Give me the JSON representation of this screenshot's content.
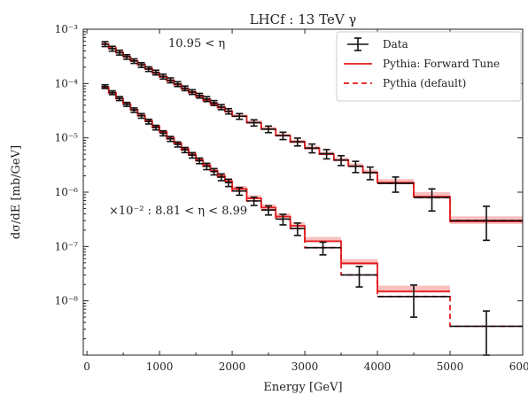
{
  "chart_data": {
    "type": "step",
    "title": "LHCf : 13 TeV γ",
    "xlabel": "Energy [GeV]",
    "ylabel": "dσ/dE [mb/GeV]",
    "xlim": [
      -50,
      6000
    ],
    "ylim": [
      1e-09,
      0.001
    ],
    "yscale": "log",
    "x_ticks": [
      0,
      1000,
      2000,
      3000,
      4000,
      5000,
      6000
    ],
    "y_ticks": [
      {
        "value": 0.001,
        "label": "10⁻³"
      },
      {
        "value": 0.0001,
        "label": "10⁻⁴"
      },
      {
        "value": 1e-05,
        "label": "10⁻⁵"
      },
      {
        "value": 1e-06,
        "label": "10⁻⁶"
      },
      {
        "value": 1e-07,
        "label": "10⁻⁷"
      },
      {
        "value": 1e-08,
        "label": "10⁻⁸"
      }
    ],
    "legend_position": "top-right",
    "legend": [
      {
        "name": "Data",
        "style": "errorbar"
      },
      {
        "name": "Pythia: Forward Tune",
        "style": "solid"
      },
      {
        "name": "Pythia (default)",
        "style": "dashed"
      }
    ],
    "annotations": [
      "10.95 < η",
      "×10⁻² : 8.81 < η < 8.99"
    ],
    "colors": {
      "data": "#111111",
      "model": "#e31a1c",
      "band": "#f9b9b9"
    },
    "regions": [
      {
        "label": "10.95 < η",
        "bins": [
          [
            200,
            300,
            0.00052,
            0.00056,
            0.00053,
            0.0004,
            0.00066,
            0.00054
          ],
          [
            300,
            400,
            0.00043,
            0.00047,
            0.00044,
            0.00033,
            0.00055,
            0.000455
          ],
          [
            400,
            500,
            0.00036,
            0.000395,
            0.00037,
            0.000275,
            0.00046,
            0.000375
          ],
          [
            500,
            600,
            0.0003,
            0.00033,
            0.00031,
            0.00023,
            0.00039,
            0.000315
          ],
          [
            600,
            700,
            0.000255,
            0.00028,
            0.00026,
            0.000195,
            0.00033,
            0.000265
          ],
          [
            700,
            800,
            0.000215,
            0.000235,
            0.00022,
            0.00016,
            0.00028,
            0.000225
          ],
          [
            800,
            900,
            0.00018,
            0.0002,
            0.000185,
            0.000135,
            0.000235,
            0.00019
          ],
          [
            900,
            1000,
            0.000155,
            0.00017,
            0.000155,
            0.000115,
            0.0002,
            0.00016
          ],
          [
            1000,
            1100,
            0.00013,
            0.000145,
            0.000132,
            9.6e-05,
            0.00017,
            0.000135
          ],
          [
            1100,
            1200,
            0.00011,
            0.000122,
            0.000112,
            8.1e-05,
            0.000145,
            0.000115
          ],
          [
            1200,
            1300,
            9.3e-05,
            0.000103,
            9.5e-05,
            6.9e-05,
            0.000122,
            9.8e-05
          ],
          [
            1300,
            1400,
            7.9e-05,
            8.8e-05,
            8e-05,
            5.8e-05,
            0.000104,
            8.2e-05
          ],
          [
            1400,
            1500,
            6.7e-05,
            7.5e-05,
            6.8e-05,
            4.9e-05,
            8.8e-05,
            7e-05
          ],
          [
            1500,
            1600,
            5.7e-05,
            6.4e-05,
            5.8e-05,
            4.2e-05,
            7.5e-05,
            6e-05
          ],
          [
            1600,
            1700,
            4.8e-05,
            5.4e-05,
            4.9e-05,
            3.55e-05,
            6.4e-05,
            5.2e-05
          ],
          [
            1700,
            1800,
            4.1e-05,
            4.6e-05,
            4.2e-05,
            3e-05,
            5.5e-05,
            4.4e-05
          ],
          [
            1800,
            1900,
            3.5e-05,
            3.95e-05,
            3.6e-05,
            2.55e-05,
            4.7e-05,
            3.7e-05
          ],
          [
            1900,
            2000,
            3e-05,
            3.35e-05,
            3.05e-05,
            2.15e-05,
            4e-05,
            3.1e-05
          ],
          [
            2000,
            2200,
            2.45e-05,
            2.75e-05,
            2.5e-05,
            1.75e-05,
            3.3e-05,
            2.5e-05
          ],
          [
            2200,
            2400,
            1.85e-05,
            2.1e-05,
            1.9e-05,
            1.3e-05,
            2.5e-05,
            1.9e-05
          ],
          [
            2400,
            2600,
            1.4e-05,
            1.6e-05,
            1.45e-05,
            9.8e-06,
            1.95e-05,
            1.45e-05
          ],
          [
            2600,
            2800,
            1.05e-05,
            1.2e-05,
            1.1e-05,
            7.3e-06,
            1.5e-05,
            1.1e-05
          ],
          [
            2800,
            3000,
            8.1e-06,
            9.3e-06,
            8.4e-06,
            5.5e-06,
            1.15e-05,
            8.5e-06
          ],
          [
            3000,
            3200,
            6.2e-06,
            7.2e-06,
            6.4e-06,
            4.2e-06,
            8.9e-06,
            6.5e-06
          ],
          [
            3200,
            3400,
            4.8e-06,
            5.6e-06,
            5e-06,
            3.2e-06,
            7e-06,
            5.1e-06
          ],
          [
            3400,
            3600,
            3.7e-06,
            4.35e-06,
            3.9e-06,
            2.45e-06,
            5.5e-06,
            3.9e-06
          ],
          [
            3600,
            3800,
            2.9e-06,
            3.4e-06,
            3e-06,
            1.85e-06,
            4.3e-06,
            3e-06
          ],
          [
            3800,
            4000,
            2.2e-06,
            2.6e-06,
            2.3e-06,
            1.4e-06,
            3.4e-06,
            2.3e-06
          ],
          [
            4000,
            4500,
            1.45e-06,
            1.75e-06,
            1.5e-06,
            8.5e-07,
            2.4e-06,
            1.45e-06
          ],
          [
            4500,
            5000,
            8e-07,
            1e-06,
            8.3e-07,
            4.3e-07,
            1.6e-06,
            8e-07
          ],
          [
            5000,
            6000,
            2.6e-07,
            3.6e-07,
            2.9e-07,
            1.2e-07,
            7.5e-07,
            3e-07
          ]
        ]
      },
      {
        "label": "×10⁻² : 8.81 < η < 8.99",
        "bins": [
          [
            200,
            300,
            8.4e-05,
            9e-05,
            8.5e-05,
            7e-05,
            0.0001,
            8.8e-05
          ],
          [
            300,
            400,
            6.6e-05,
            7.1e-05,
            6.7e-05,
            5.5e-05,
            7.9e-05,
            6.8e-05
          ],
          [
            400,
            500,
            5.2e-05,
            5.6e-05,
            5.3e-05,
            4.3e-05,
            6.25e-05,
            5.3e-05
          ],
          [
            500,
            600,
            4.1e-05,
            4.45e-05,
            4.2e-05,
            3.4e-05,
            4.95e-05,
            4.15e-05
          ],
          [
            600,
            700,
            3.25e-05,
            3.55e-05,
            3.3e-05,
            2.65e-05,
            3.95e-05,
            3.25e-05
          ],
          [
            700,
            800,
            2.55e-05,
            2.8e-05,
            2.6e-05,
            2.1e-05,
            3.1e-05,
            2.55e-05
          ],
          [
            800,
            900,
            2e-05,
            2.2e-05,
            2.05e-05,
            1.65e-05,
            2.45e-05,
            2e-05
          ],
          [
            900,
            1000,
            1.6e-05,
            1.75e-05,
            1.62e-05,
            1.3e-05,
            1.95e-05,
            1.55e-05
          ],
          [
            1000,
            1100,
            1.25e-05,
            1.38e-05,
            1.28e-05,
            1.02e-05,
            1.54e-05,
            1.22e-05
          ],
          [
            1100,
            1200,
            9.9e-06,
            1.09e-05,
            1e-05,
            8e-06,
            1.22e-05,
            9.6e-06
          ],
          [
            1200,
            1300,
            7.8e-06,
            8.6e-06,
            7.9e-06,
            6.3e-06,
            9.6e-06,
            7.6e-06
          ],
          [
            1300,
            1400,
            6.2e-06,
            6.9e-06,
            6.3e-06,
            5e-06,
            7.7e-06,
            6e-06
          ],
          [
            1400,
            1500,
            4.9e-06,
            5.5e-06,
            5e-06,
            3.9e-06,
            6.1e-06,
            4.8e-06
          ],
          [
            1500,
            1600,
            3.9e-06,
            4.35e-06,
            3.95e-06,
            3.1e-06,
            4.85e-06,
            3.8e-06
          ],
          [
            1600,
            1700,
            3.1e-06,
            3.5e-06,
            3.15e-06,
            2.45e-06,
            3.9e-06,
            3e-06
          ],
          [
            1700,
            1800,
            2.45e-06,
            2.8e-06,
            2.5e-06,
            1.95e-06,
            3.1e-06,
            2.4e-06
          ],
          [
            1800,
            1900,
            1.95e-06,
            2.25e-06,
            2e-06,
            1.55e-06,
            2.5e-06,
            1.9e-06
          ],
          [
            1900,
            2000,
            1.55e-06,
            1.8e-06,
            1.6e-06,
            1.22e-06,
            2e-06,
            1.5e-06
          ],
          [
            2000,
            2200,
            1.1e-06,
            1.3e-06,
            1.15e-06,
            8.6e-07,
            1.45e-06,
            1.05e-06
          ],
          [
            2200,
            2400,
            7.4e-07,
            8.8e-07,
            7.7e-07,
            5.7e-07,
            9.9e-07,
            6.9e-07
          ],
          [
            2400,
            2600,
            5e-07,
            6e-07,
            5.2e-07,
            3.8e-07,
            6.8e-07,
            4.7e-07
          ],
          [
            2600,
            2800,
            3.4e-07,
            4.1e-07,
            3.55e-07,
            2.55e-07,
            4.7e-07,
            3.2e-07
          ],
          [
            2800,
            3000,
            2.3e-07,
            2.8e-07,
            2.4e-07,
            1.7e-07,
            3.2e-07,
            2.15e-07
          ],
          [
            3000,
            3500,
            1.2e-07,
            1.5e-07,
            1.25e-07,
            8.5e-08,
            1.75e-07,
            9.5e-08
          ],
          [
            3500,
            4000,
            4.6e-08,
            5.9e-08,
            4.9e-08,
            3e-08,
            7.2e-08,
            3e-08
          ],
          [
            4000,
            5000,
            1.4e-08,
            1.9e-08,
            1.5e-08,
            8e-09,
            2.6e-08,
            1.2e-08
          ],
          [
            5000,
            6000,
            null,
            null,
            null,
            null,
            null,
            3.4e-09
          ]
        ]
      }
    ],
    "data_points": [
      [
        250,
        0.00053,
        0.00059,
        0.00048,
        50
      ],
      [
        350,
        0.00044,
        0.000485,
        0.000395,
        50
      ],
      [
        450,
        0.00037,
        0.00041,
        0.000335,
        50
      ],
      [
        550,
        0.00031,
        0.00034,
        0.00028,
        50
      ],
      [
        650,
        0.00026,
        0.000285,
        0.000235,
        50
      ],
      [
        750,
        0.00022,
        0.000242,
        0.000198,
        50
      ],
      [
        850,
        0.000185,
        0.000203,
        0.000167,
        50
      ],
      [
        950,
        0.00016,
        0.000176,
        0.000144,
        50
      ],
      [
        1050,
        0.000135,
        0.000149,
        0.000121,
        50
      ],
      [
        1150,
        0.000115,
        0.000127,
        0.000103,
        50
      ],
      [
        1250,
        9.8e-05,
        0.000108,
        8.8e-05,
        50
      ],
      [
        1350,
        8.2e-05,
        9e-05,
        7.4e-05,
        50
      ],
      [
        1450,
        7e-05,
        7.7e-05,
        6.3e-05,
        50
      ],
      [
        1550,
        6e-05,
        6.6e-05,
        5.4e-05,
        50
      ],
      [
        1650,
        5.2e-05,
        5.75e-05,
        4.65e-05,
        50
      ],
      [
        1750,
        4.4e-05,
        4.85e-05,
        3.95e-05,
        50
      ],
      [
        1850,
        3.7e-05,
        4.1e-05,
        3.3e-05,
        50
      ],
      [
        1950,
        3.1e-05,
        3.45e-05,
        2.75e-05,
        50
      ],
      [
        2100,
        2.5e-05,
        2.8e-05,
        2.2e-05,
        100
      ],
      [
        2300,
        1.9e-05,
        2.15e-05,
        1.65e-05,
        100
      ],
      [
        2500,
        1.45e-05,
        1.65e-05,
        1.25e-05,
        100
      ],
      [
        2700,
        1.1e-05,
        1.27e-05,
        9.3e-06,
        100
      ],
      [
        2900,
        8.5e-06,
        9.9e-06,
        7.1e-06,
        100
      ],
      [
        3100,
        6.5e-06,
        7.7e-06,
        5.3e-06,
        100
      ],
      [
        3300,
        5.1e-06,
        6.1e-06,
        4.1e-06,
        100
      ],
      [
        3500,
        3.9e-06,
        4.7e-06,
        3.1e-06,
        100
      ],
      [
        3700,
        3e-06,
        3.7e-06,
        2.3e-06,
        100
      ],
      [
        3900,
        2.3e-06,
        2.9e-06,
        1.7e-06,
        100
      ],
      [
        4250,
        1.45e-06,
        1.9e-06,
        1e-06,
        250
      ],
      [
        4750,
        8e-07,
        1.15e-06,
        4.5e-07,
        250
      ],
      [
        5500,
        3e-07,
        5.5e-07,
        1.3e-07,
        500
      ],
      [
        250,
        8.8e-05,
        9.5e-05,
        8.1e-05,
        50
      ],
      [
        350,
        6.8e-05,
        7.35e-05,
        6.25e-05,
        50
      ],
      [
        450,
        5.3e-05,
        5.75e-05,
        4.85e-05,
        50
      ],
      [
        550,
        4.15e-05,
        4.5e-05,
        3.8e-05,
        50
      ],
      [
        650,
        3.25e-05,
        3.55e-05,
        2.95e-05,
        50
      ],
      [
        750,
        2.55e-05,
        2.8e-05,
        2.3e-05,
        50
      ],
      [
        850,
        2e-05,
        2.2e-05,
        1.8e-05,
        50
      ],
      [
        950,
        1.55e-05,
        1.7e-05,
        1.4e-05,
        50
      ],
      [
        1050,
        1.22e-05,
        1.35e-05,
        1.09e-05,
        50
      ],
      [
        1150,
        9.6e-06,
        1.06e-05,
        8.6e-06,
        50
      ],
      [
        1250,
        7.6e-06,
        8.4e-06,
        6.8e-06,
        50
      ],
      [
        1350,
        6e-06,
        6.65e-06,
        5.35e-06,
        50
      ],
      [
        1450,
        4.8e-06,
        5.35e-06,
        4.25e-06,
        50
      ],
      [
        1550,
        3.8e-06,
        4.25e-06,
        3.35e-06,
        50
      ],
      [
        1650,
        3e-06,
        3.4e-06,
        2.6e-06,
        50
      ],
      [
        1750,
        2.4e-06,
        2.72e-06,
        2.08e-06,
        50
      ],
      [
        1850,
        1.9e-06,
        2.17e-06,
        1.63e-06,
        50
      ],
      [
        1950,
        1.5e-06,
        1.73e-06,
        1.27e-06,
        50
      ],
      [
        2100,
        1.05e-06,
        1.22e-06,
        8.8e-07,
        100
      ],
      [
        2300,
        6.9e-07,
        8.1e-07,
        5.7e-07,
        100
      ],
      [
        2500,
        4.7e-07,
        5.6e-07,
        3.8e-07,
        100
      ],
      [
        2700,
        3.2e-07,
        3.9e-07,
        2.5e-07,
        100
      ],
      [
        2900,
        2.15e-07,
        2.7e-07,
        1.6e-07,
        100
      ],
      [
        3250,
        9.5e-08,
        1.2e-07,
        7e-08,
        250
      ],
      [
        3750,
        3e-08,
        4.3e-08,
        1.8e-08,
        250
      ],
      [
        4500,
        1.2e-08,
        1.95e-08,
        5e-09,
        500
      ],
      [
        5500,
        3.4e-09,
        6.5e-09,
        1e-09,
        500
      ]
    ]
  }
}
